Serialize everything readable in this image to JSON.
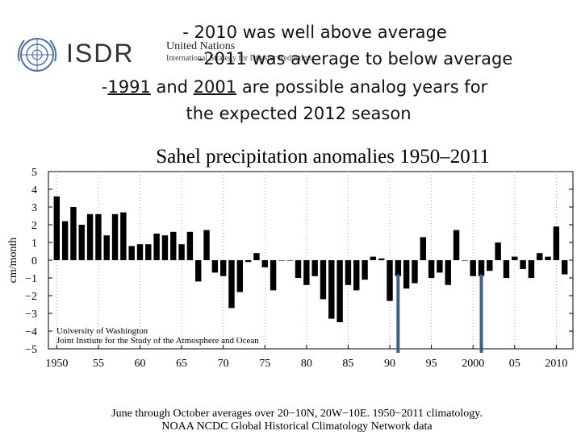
{
  "slide": {
    "logo": {
      "acronym": "ISDR",
      "org_name": "United Nations",
      "org_sub": "International Strategy for Disaster Reduction"
    },
    "headlines": {
      "line1": "- 2010 was well above average",
      "line2": "-2011 was average to below average",
      "line3_pre": "-",
      "line3_year1": "1991",
      "line3_mid": " and ",
      "line3_year2": "2001",
      "line3_post": " are possible analog years  for",
      "line4": "the expected 2012 season"
    },
    "colors": {
      "bar": "#000000",
      "marker": "#3a5f8f",
      "text": "#111111"
    }
  },
  "chart_data": {
    "type": "bar",
    "title": "Sahel precipitation anomalies 1950–2011",
    "ylabel": "cm/month",
    "xlabel": "",
    "ylim": [
      -5,
      5
    ],
    "xlim": [
      1949,
      2012
    ],
    "yticks": [
      5,
      4,
      3,
      2,
      1,
      0,
      -1,
      -2,
      -3,
      -4,
      -5
    ],
    "ytick_labels": [
      "5",
      "4",
      "3",
      "2",
      "1",
      "0",
      "−1",
      "−2",
      "−3",
      "−4",
      "−5"
    ],
    "xticks": [
      1950,
      1955,
      1960,
      1965,
      1970,
      1975,
      1980,
      1985,
      1990,
      1995,
      2000,
      2005,
      2010
    ],
    "xtick_labels": [
      "1950",
      "55",
      "60",
      "65",
      "70",
      "75",
      "80",
      "85",
      "90",
      "95",
      "2000",
      "05",
      "2010"
    ],
    "years": [
      1950,
      1951,
      1952,
      1953,
      1954,
      1955,
      1956,
      1957,
      1958,
      1959,
      1960,
      1961,
      1962,
      1963,
      1964,
      1965,
      1966,
      1967,
      1968,
      1969,
      1970,
      1971,
      1972,
      1973,
      1974,
      1975,
      1976,
      1977,
      1978,
      1979,
      1980,
      1981,
      1982,
      1983,
      1984,
      1985,
      1986,
      1987,
      1988,
      1989,
      1990,
      1991,
      1992,
      1993,
      1994,
      1995,
      1996,
      1997,
      1998,
      1999,
      2000,
      2001,
      2002,
      2003,
      2004,
      2005,
      2006,
      2007,
      2008,
      2009,
      2010,
      2011
    ],
    "values": [
      3.6,
      2.2,
      3.0,
      2.0,
      2.6,
      2.6,
      1.4,
      2.6,
      2.7,
      0.8,
      0.9,
      0.9,
      1.5,
      1.4,
      1.6,
      0.9,
      1.6,
      -1.2,
      1.7,
      -0.7,
      -0.9,
      -2.7,
      -1.8,
      -0.1,
      0.4,
      -0.4,
      -1.7,
      0.0,
      0.0,
      -1.0,
      -1.4,
      -0.9,
      -2.2,
      -3.3,
      -3.5,
      -1.4,
      -1.7,
      -1.1,
      0.2,
      0.1,
      -2.3,
      -0.9,
      -1.6,
      -1.3,
      1.3,
      -1.0,
      -0.7,
      -1.4,
      1.7,
      0.0,
      -0.9,
      -0.9,
      -0.6,
      1.0,
      -1.0,
      0.2,
      -0.5,
      -1.0,
      0.4,
      0.2,
      1.9,
      -0.8
    ],
    "analog_markers": [
      1991,
      2001
    ],
    "credit": [
      "University of Washington",
      "Joint Instiute for the Study of the Atmosphere and Ocean"
    ],
    "footnotes": [
      "June through October averages over 20−10N, 20W−10E. 1950−2011 climatology.",
      "NOAA NCDC Global Historical Climatology Network data"
    ]
  }
}
